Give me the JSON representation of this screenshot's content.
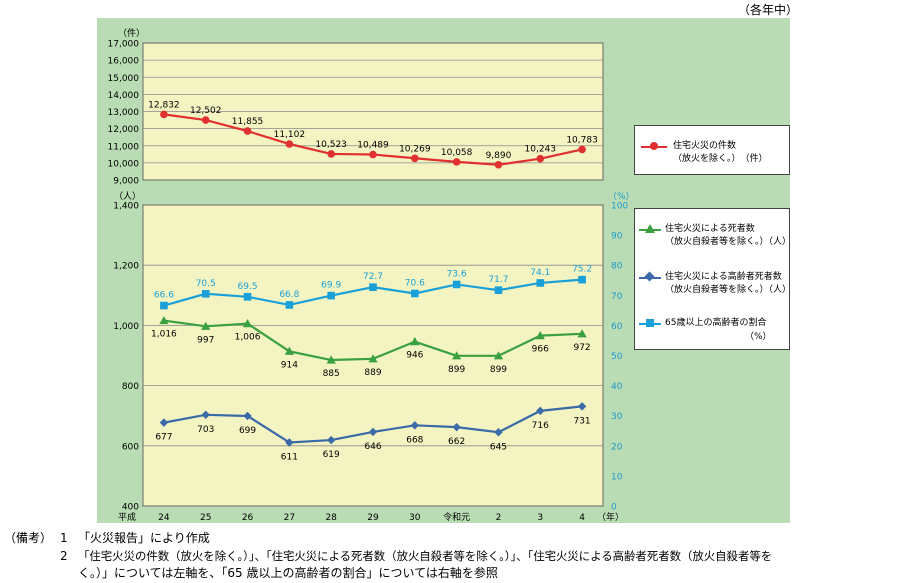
{
  "header_note": "（各年中）",
  "chart_data": [
    {
      "type": "line",
      "categories": [
        "24",
        "25",
        "26",
        "27",
        "28",
        "29",
        "30",
        "令和元",
        "2",
        "3",
        "4"
      ],
      "unit_label": "（件）",
      "ylim": [
        9000,
        17000
      ],
      "yticks": [
        "9,000",
        "10,000",
        "11,000",
        "12,000",
        "13,000",
        "14,000",
        "15,000",
        "16,000",
        "17,000"
      ],
      "series": [
        {
          "name": "住宅火災の件数",
          "name_line2": "（放火を除く。）　（件）",
          "color": "#e03030",
          "values": [
            12832,
            12502,
            11855,
            11102,
            10523,
            10489,
            10269,
            10058,
            9890,
            10243,
            10783
          ],
          "labels": [
            "12,832",
            "12,502",
            "11,855",
            "11,102",
            "10,523",
            "10,489",
            "10,269",
            "10,058",
            "9,890",
            "10,243",
            "10,783"
          ]
        }
      ]
    },
    {
      "type": "line",
      "categories": [
        "24",
        "25",
        "26",
        "27",
        "28",
        "29",
        "30",
        "令和元",
        "2",
        "3",
        "4"
      ],
      "x_prefix": "平成",
      "x_unit": "（年）",
      "left_unit": "（人）",
      "right_unit": "（%）",
      "ylim": [
        400,
        1400
      ],
      "y2lim": [
        0,
        100
      ],
      "yticks": [
        "400",
        "600",
        "800",
        "1,000",
        "1,200",
        "1,400"
      ],
      "y2ticks": [
        "0",
        "10",
        "20",
        "30",
        "40",
        "50",
        "60",
        "70",
        "80",
        "90",
        "100"
      ],
      "series": [
        {
          "name": "住宅火災による死者数",
          "name_line2": "（放火自殺者等を除く。）（人）",
          "axis": "left",
          "color": "#3aa040",
          "values": [
            1016,
            997,
            1006,
            914,
            885,
            889,
            946,
            899,
            899,
            966,
            972
          ],
          "labels": [
            "1,016",
            "997",
            "1,006",
            "914",
            "885",
            "889",
            "946",
            "899",
            "899",
            "966",
            "972"
          ]
        },
        {
          "name": "住宅火災による高齢者死者数",
          "name_line2": "（放火自殺者等を除く。）（人）",
          "axis": "left",
          "color": "#3a6aa8",
          "values": [
            677,
            703,
            699,
            611,
            619,
            646,
            668,
            662,
            645,
            716,
            731
          ],
          "labels": [
            "677",
            "703",
            "699",
            "611",
            "619",
            "646",
            "668",
            "662",
            "645",
            "716",
            "731"
          ]
        },
        {
          "name": "65歳以上の高齢者の割合",
          "name_line2": "（%）",
          "axis": "right",
          "color": "#1aa0d8",
          "values": [
            66.6,
            70.5,
            69.5,
            66.8,
            69.9,
            72.7,
            70.6,
            73.6,
            71.7,
            74.1,
            75.2
          ],
          "labels": [
            "66.6",
            "70.5",
            "69.5",
            "66.8",
            "69.9",
            "72.7",
            "70.6",
            "73.6",
            "71.7",
            "74.1",
            "75.2"
          ]
        }
      ]
    }
  ],
  "notes": {
    "label": "（備考）",
    "n1_num": "1",
    "n1_text": "「火災報告」により作成",
    "n2_num": "2",
    "n2_line1": "「住宅火災の件数（放火を除く。）」、「住宅火災による死者数（放火自殺者等を除く。）」、「住宅火災による高齢者死者数（放火自殺者等を",
    "n2_line2": "く。）」については左軸を、「65 歳以上の高齢者の割合」については右軸を参照"
  }
}
